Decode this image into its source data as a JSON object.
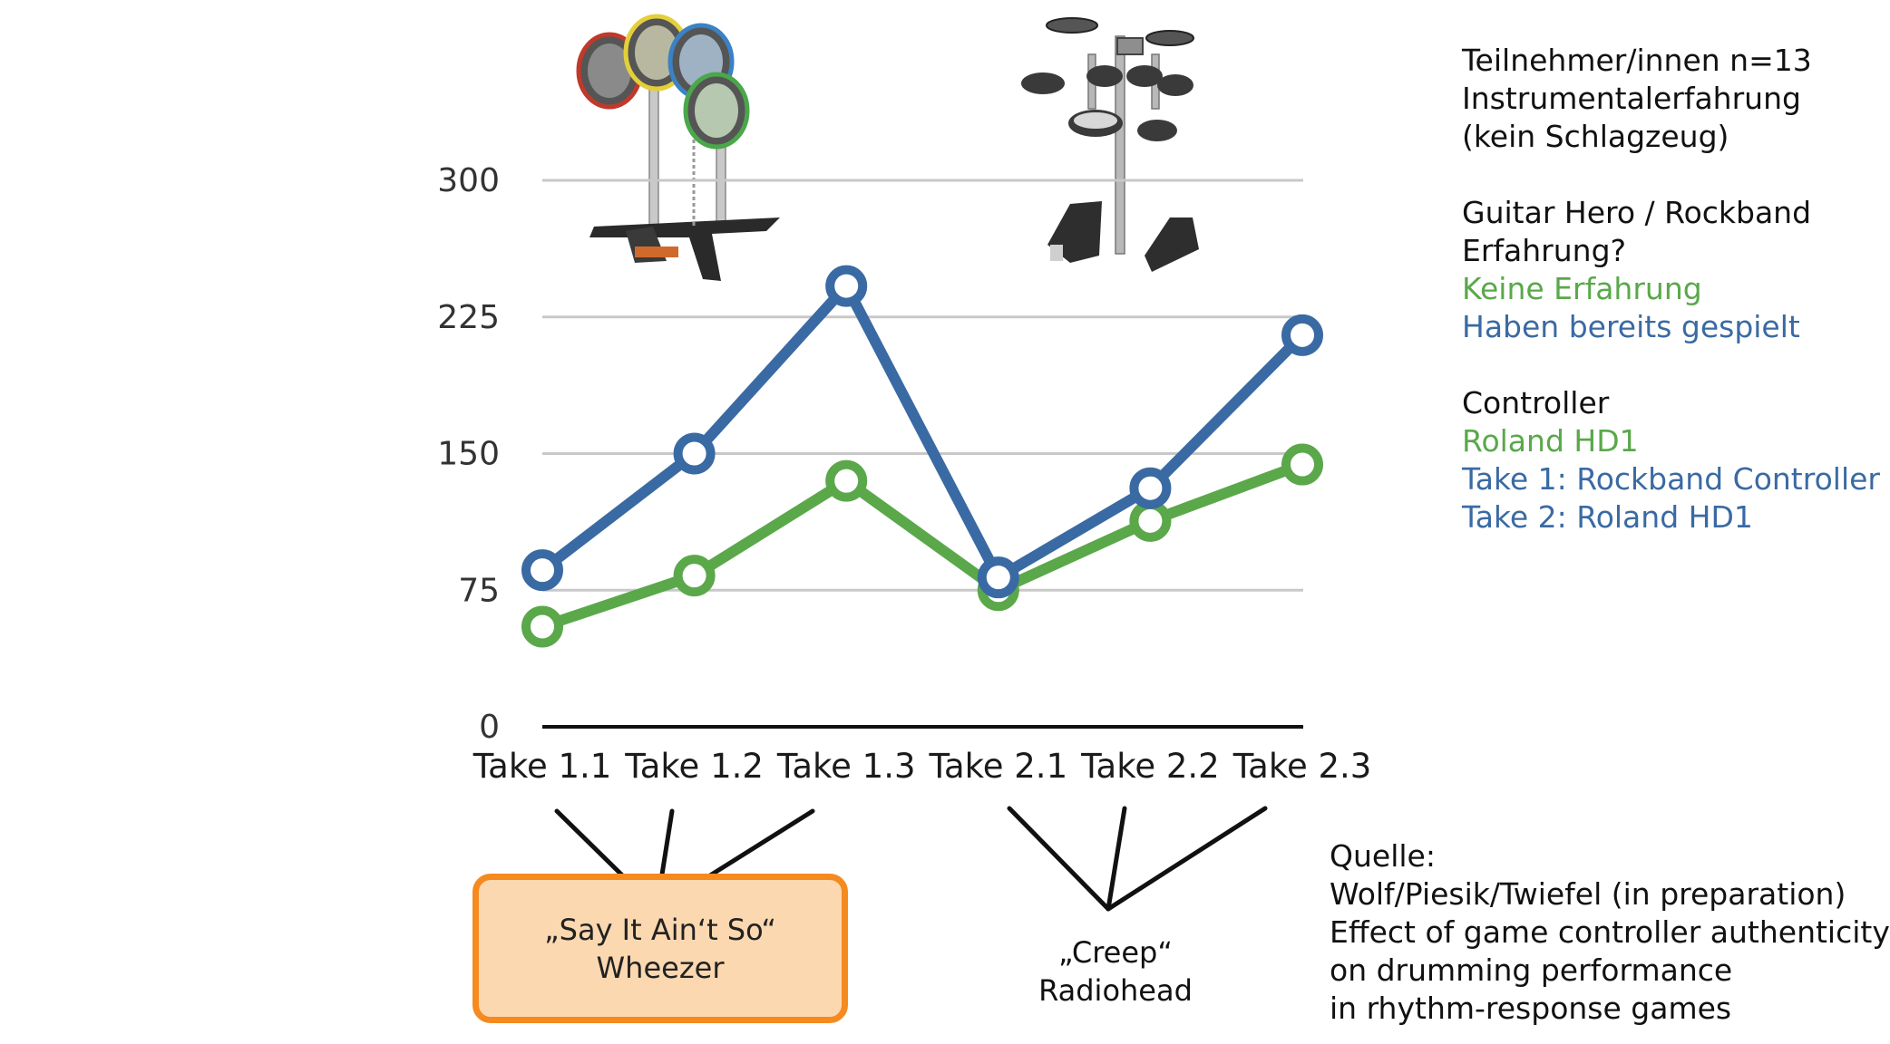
{
  "chart_data": {
    "type": "line",
    "categories": [
      "Take 1.1",
      "Take 1.2",
      "Take 1.3",
      "Take 2.1",
      "Take 2.2",
      "Take 2.3"
    ],
    "series": [
      {
        "color": "#3a6aa3",
        "values": [
          86,
          150,
          242,
          82,
          131,
          215
        ]
      },
      {
        "color": "#5aa84a",
        "values": [
          55,
          83,
          135,
          75,
          113,
          144
        ]
      }
    ],
    "yticks": [
      0,
      75,
      150,
      225,
      300
    ],
    "ylim": [
      0,
      300
    ],
    "grid": true
  },
  "legend": {
    "participants": [
      "Teilnehmer/innen n=13",
      "Instrumentalerfahrung",
      "(kein Schlagzeug)"
    ],
    "experience_heading": [
      "Guitar Hero / Rockband",
      "Erfahrung?"
    ],
    "experience_green": "Keine Erfahrung",
    "experience_blue": "Haben bereits gespielt",
    "controller_heading": "Controller",
    "controller_green": "Roland HD1",
    "controller_blue_1": "Take 1: Rockband Controller",
    "controller_blue_2": "Take 2: Roland HD1"
  },
  "songs": {
    "song1_title": "„Say It Ain‘t So“",
    "song1_artist": "Wheezer",
    "song2_title": "„Creep“",
    "song2_artist": "Radiohead"
  },
  "source": {
    "heading": "Quelle:",
    "lines": [
      "Wolf/Piesik/Twiefel (in preparation)",
      "Effect of game controller authenticity",
      "on drumming performance",
      "in rhythm-response games"
    ]
  },
  "colors": {
    "green": "#5aa84a",
    "blue": "#3a6aa3",
    "highlight_fill": "#fcd8b0",
    "highlight_border": "#f58a1f"
  },
  "icons": [
    "toy-drum-controller-icon",
    "electronic-drum-kit-icon"
  ]
}
